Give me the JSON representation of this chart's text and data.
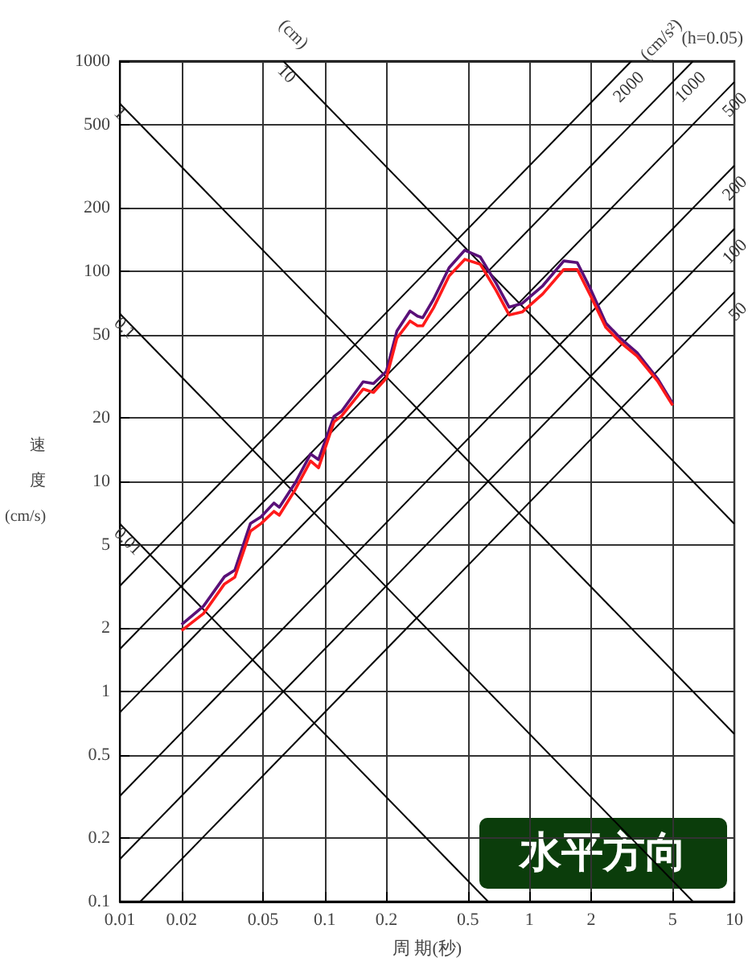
{
  "chart_data": {
    "type": "line",
    "xlabel": "周 期(秒)",
    "ylabel": "速度 (cm/s)",
    "log": "xy",
    "grid": true,
    "marker": "none",
    "xlim": [
      0.01,
      10
    ],
    "xticks": [
      0.01,
      0.02,
      0.05,
      0.1,
      0.2,
      0.5,
      1,
      2,
      5,
      10
    ],
    "ylim": [
      0.1,
      1000
    ],
    "yticks": [
      0.1,
      0.2,
      0.5,
      1,
      2,
      5,
      10,
      20,
      50,
      100,
      200,
      500,
      1000
    ],
    "annotations": [
      "(cm)",
      "(cm/s²)",
      "(h=0.05)",
      "水平方向"
    ],
    "series": [
      {
        "name": "1",
        "color": "#000000",
        "x": [
          0.01,
          10
        ],
        "values": [
          628.3,
          0.6283
        ]
      },
      {
        "name": "10",
        "color": "#000000",
        "x": [
          0.06283,
          10
        ],
        "values": [
          1000,
          6.283
        ]
      },
      {
        "name": "0.1",
        "color": "#000000",
        "x": [
          0.01,
          6.283
        ],
        "values": [
          62.83,
          0.1
        ]
      },
      {
        "name": "0.01",
        "color": "#000000",
        "x": [
          0.01,
          0.6283
        ],
        "values": [
          6.283,
          0.1
        ]
      },
      {
        "name": "2000",
        "color": "#000000",
        "x": [
          0.01,
          3.1416
        ],
        "values": [
          3.183,
          1000
        ]
      },
      {
        "name": "1000",
        "color": "#000000",
        "x": [
          0.01,
          6.283
        ],
        "values": [
          1.592,
          1000
        ]
      },
      {
        "name": "500",
        "color": "#000000",
        "x": [
          0.01,
          10
        ],
        "values": [
          0.796,
          795.8
        ]
      },
      {
        "name": "200",
        "color": "#000000",
        "x": [
          0.01,
          10
        ],
        "values": [
          0.3183,
          318.3
        ]
      },
      {
        "name": "100",
        "color": "#000000",
        "x": [
          0.01,
          10
        ],
        "values": [
          0.1592,
          159.2
        ]
      },
      {
        "name": "50",
        "color": "#000000",
        "x": [
          0.01257,
          10
        ],
        "values": [
          0.1,
          79.58
        ]
      },
      {
        "color": "#5a1078",
        "x": [
          0.02,
          0.0256,
          0.0324,
          0.0364,
          0.0434,
          0.0489,
          0.0565,
          0.06,
          0.0716,
          0.0853,
          0.0933,
          0.111,
          0.121,
          0.154,
          0.173,
          0.2,
          0.225,
          0.261,
          0.284,
          0.301,
          0.34,
          0.405,
          0.483,
          0.575,
          0.687,
          0.795,
          0.921,
          1.16,
          1.47,
          1.71,
          1.98,
          2.36,
          2.81,
          3.35,
          4.24,
          5
        ],
        "values": [
          2.08,
          2.55,
          3.52,
          3.78,
          6.31,
          6.78,
          7.89,
          7.53,
          9.8,
          13.5,
          12.7,
          20.4,
          21.6,
          29.8,
          29.2,
          33.4,
          51.9,
          64.7,
          61.1,
          60.1,
          73.6,
          104,
          126,
          117,
          87.7,
          67.5,
          70.3,
          85.3,
          112,
          110,
          82.8,
          56.6,
          47.5,
          41,
          30.6,
          23.5
        ]
      },
      {
        "color": "#ff1a1a",
        "x": [
          0.02,
          0.0256,
          0.0324,
          0.0364,
          0.0434,
          0.0489,
          0.0565,
          0.06,
          0.0716,
          0.0853,
          0.0933,
          0.111,
          0.121,
          0.154,
          0.173,
          0.2,
          0.225,
          0.261,
          0.284,
          0.301,
          0.34,
          0.405,
          0.483,
          0.575,
          0.687,
          0.795,
          0.921,
          1.16,
          1.47,
          1.71,
          1.98,
          2.36,
          2.81,
          3.35,
          4.24,
          5
        ],
        "values": [
          1.95,
          2.35,
          3.25,
          3.5,
          5.8,
          6.3,
          7.2,
          6.9,
          9.1,
          12.5,
          11.6,
          19.2,
          20.5,
          27.5,
          26.5,
          31,
          48,
          58,
          55,
          55,
          67,
          95,
          114,
          108,
          81,
          62,
          64,
          78,
          102,
          102,
          77,
          54,
          45.5,
          39.5,
          29.8,
          23
        ]
      }
    ]
  }
}
